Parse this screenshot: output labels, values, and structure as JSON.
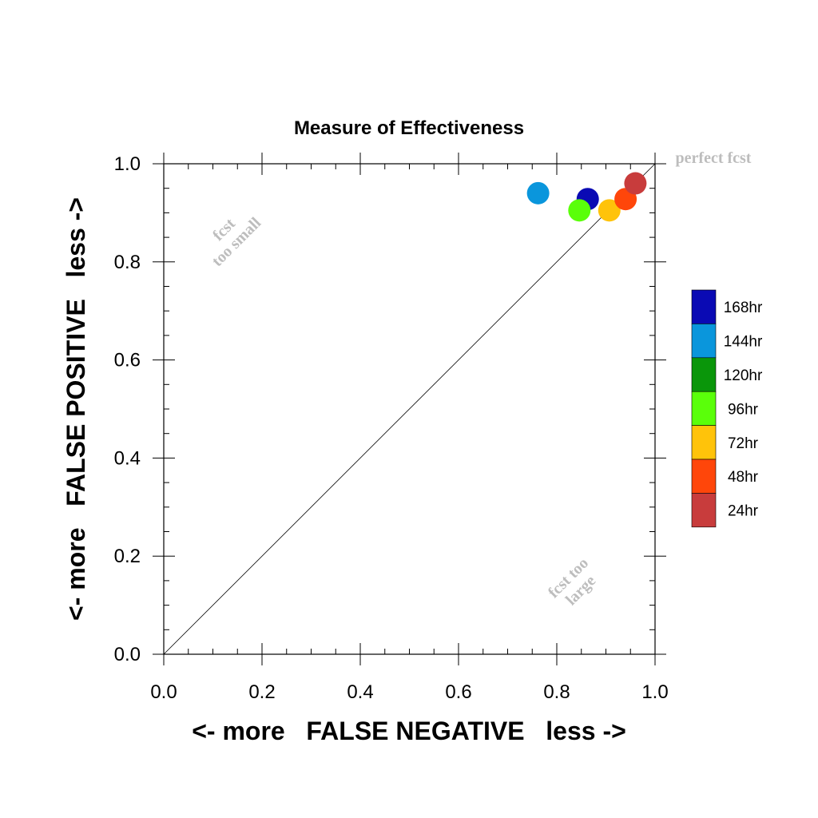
{
  "chart_data": {
    "type": "scatter",
    "title": "Measure of Effectiveness",
    "xlabel": "<- more   FALSE NEGATIVE   less ->",
    "ylabel": "<- more   FALSE POSITIVE   less ->",
    "xlim": [
      0,
      1
    ],
    "ylim": [
      0,
      1
    ],
    "x_ticks": [
      "0.0",
      "0.2",
      "0.4",
      "0.6",
      "0.8",
      "1.0"
    ],
    "y_ticks": [
      "0.0",
      "0.2",
      "0.4",
      "0.6",
      "0.8",
      "1.0"
    ],
    "grid": false,
    "reference_line": "diagonal y = x",
    "annotations": {
      "perfect": "perfect fcst",
      "too_small_1": "fcst",
      "too_small_2": "too small",
      "too_large_1": "fcst too",
      "too_large_2": "large"
    },
    "legend_position": "right",
    "series": [
      {
        "name": "168hr",
        "color": "#0a0ab4",
        "x": 0.863,
        "y": 0.928
      },
      {
        "name": "144hr",
        "color": "#0a96dc",
        "x": 0.762,
        "y": 0.94
      },
      {
        "name": "120hr",
        "color": "#0a960a",
        "x": null,
        "y": null
      },
      {
        "name": "96hr",
        "color": "#5aff0a",
        "x": 0.846,
        "y": 0.905
      },
      {
        "name": "72hr",
        "color": "#ffc30a",
        "x": 0.907,
        "y": 0.905
      },
      {
        "name": "48hr",
        "color": "#ff460a",
        "x": 0.94,
        "y": 0.928
      },
      {
        "name": "24hr",
        "color": "#c83c3c",
        "x": 0.96,
        "y": 0.96
      }
    ]
  }
}
